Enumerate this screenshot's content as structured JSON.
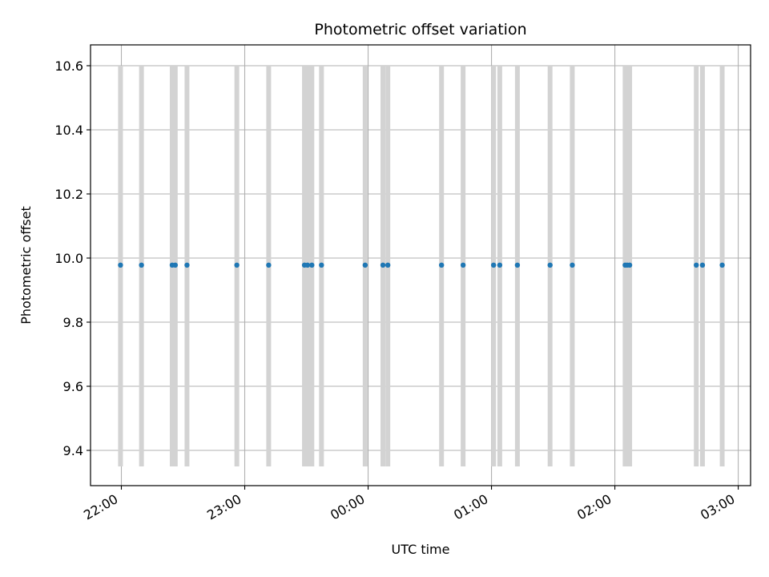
{
  "chart_data": {
    "type": "scatter",
    "title": "Photometric offset variation",
    "xlabel": "UTC time",
    "ylabel": "Photometric offset",
    "x_ticks": [
      "22:00",
      "23:00",
      "00:00",
      "01:00",
      "02:00",
      "03:00"
    ],
    "x_tick_values_hours": [
      22,
      23,
      24,
      25,
      26,
      27
    ],
    "xlim_hours": [
      21.75,
      27.1
    ],
    "y_ticks": [
      "9.4",
      "9.6",
      "9.8",
      "10.0",
      "10.2",
      "10.4",
      "10.6"
    ],
    "y_tick_values": [
      9.4,
      9.6,
      9.8,
      10.0,
      10.2,
      10.4,
      10.6
    ],
    "ylim": [
      9.29,
      10.665
    ],
    "grid": true,
    "errorbar_low": 9.35,
    "errorbar_high": 10.6,
    "points_time_hours": [
      21.993,
      22.163,
      22.412,
      22.437,
      22.532,
      22.936,
      23.194,
      23.484,
      23.509,
      23.544,
      23.622,
      23.976,
      24.12,
      24.16,
      24.595,
      24.77,
      25.017,
      25.067,
      25.21,
      25.475,
      25.655,
      26.083,
      26.1,
      26.12,
      26.66,
      26.71,
      26.87
    ],
    "points_value": [
      9.978,
      9.978,
      9.978,
      9.978,
      9.978,
      9.978,
      9.978,
      9.978,
      9.978,
      9.978,
      9.978,
      9.978,
      9.978,
      9.978,
      9.978,
      9.978,
      9.978,
      9.978,
      9.978,
      9.978,
      9.978,
      9.978,
      9.978,
      9.978,
      9.978,
      9.978,
      9.978
    ],
    "colors": {
      "points": "#1f77b4",
      "errorbars": "#d3d3d3",
      "grid": "#b0b0b0",
      "axes": "#000000"
    }
  }
}
